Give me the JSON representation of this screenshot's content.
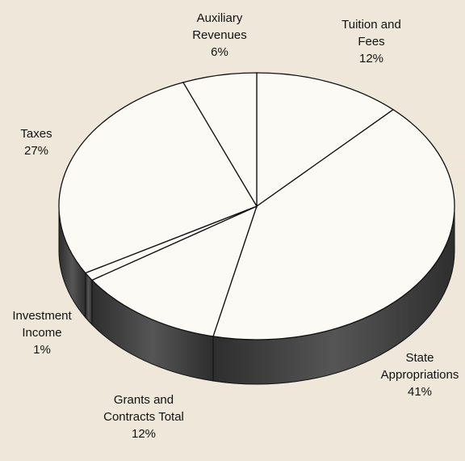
{
  "chart_data": {
    "type": "pie",
    "categories": [
      "Tuition and Fees",
      "State Appropriations",
      "Grants and Contracts Total",
      "Investment Income",
      "Taxes",
      "Auxiliary Revenues"
    ],
    "values": [
      12,
      41,
      12,
      1,
      27,
      6
    ],
    "value_labels": [
      "12%",
      "41%",
      "12%",
      "1%",
      "27%",
      "6%"
    ],
    "colors": {
      "top": "#fcfaf4",
      "side": "#2e2e2e",
      "edge": "#111111"
    }
  }
}
